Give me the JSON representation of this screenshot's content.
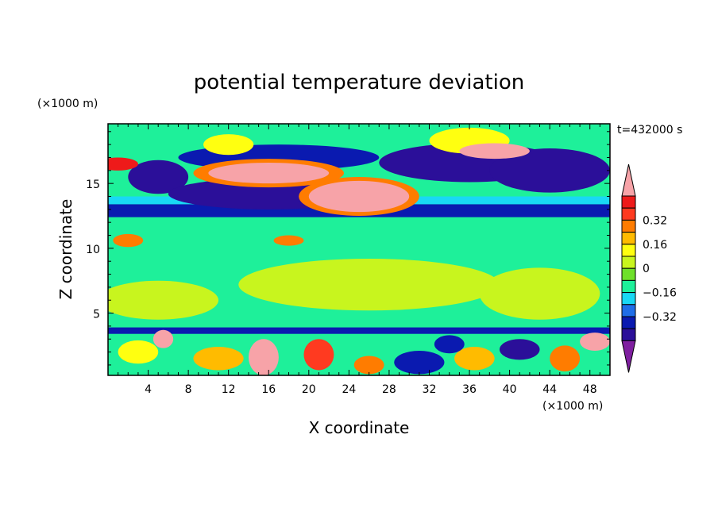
{
  "chart_data": {
    "type": "heatmap",
    "title": "potential temperature deviation",
    "xlabel": "X coordinate",
    "ylabel": "Z coordinate",
    "x_unit": "(×1000 m)",
    "y_unit": "(×1000 m)",
    "time_label": "t=432000 s",
    "xlim": [
      0,
      50
    ],
    "ylim": [
      0.2,
      19.6
    ],
    "x_ticks": [
      4,
      8,
      12,
      16,
      20,
      24,
      28,
      32,
      36,
      40,
      44,
      48
    ],
    "y_ticks": [
      5,
      10,
      15
    ],
    "colorbar": {
      "levels": [
        -0.48,
        -0.4,
        -0.32,
        -0.24,
        -0.16,
        -0.08,
        0,
        0.08,
        0.16,
        0.24,
        0.32,
        0.4,
        0.48
      ],
      "colors": [
        "#7f1fa0",
        "#2b0f99",
        "#0a1ab0",
        "#1f6ee8",
        "#19d8f4",
        "#1ef09a",
        "#6ee02a",
        "#c8f51e",
        "#ffff10",
        "#ffbb00",
        "#ff7c00",
        "#ff3a20",
        "#ee1a1a",
        "#f7a3a8"
      ],
      "labeled_levels": [
        0.32,
        0.16,
        0,
        -0.16,
        -0.32
      ],
      "tick_labels": [
        "0.32",
        "0.16",
        "0",
        "−0.16",
        "−0.32"
      ]
    },
    "features": [
      {
        "kind": "band",
        "z0": 12.4,
        "z1": 13.4,
        "value": -0.4
      },
      {
        "kind": "band",
        "z0": 13.4,
        "z1": 14.0,
        "value": -0.2
      },
      {
        "kind": "band",
        "z0": 3.4,
        "z1": 3.9,
        "value": -0.36
      },
      {
        "kind": "band",
        "z0": 3.9,
        "z1": 4.2,
        "value": -0.12
      },
      {
        "kind": "band",
        "z0": 17.8,
        "z1": 18.9,
        "value": -0.16
      },
      {
        "kind": "blob",
        "x": 5,
        "z": 15.5,
        "rx": 3,
        "rz": 1.3,
        "value": -0.44
      },
      {
        "kind": "blob",
        "x": 17,
        "z": 17.0,
        "rx": 10,
        "rz": 1.0,
        "value": -0.4
      },
      {
        "kind": "blob",
        "x": 16,
        "z": 14.2,
        "rx": 10,
        "rz": 1.2,
        "value": -0.42
      },
      {
        "kind": "blob",
        "x": 36,
        "z": 16.6,
        "rx": 9,
        "rz": 1.5,
        "value": -0.44
      },
      {
        "kind": "blob",
        "x": 44,
        "z": 16.0,
        "rx": 6,
        "rz": 1.7,
        "value": -0.44
      },
      {
        "kind": "blob",
        "x": 16,
        "z": 15.8,
        "rx": 7.5,
        "rz": 1.1,
        "value": 0.3
      },
      {
        "kind": "blob",
        "x": 16,
        "z": 15.8,
        "rx": 6,
        "rz": 0.8,
        "value": 0.52
      },
      {
        "kind": "blob",
        "x": 25,
        "z": 14.0,
        "rx": 6,
        "rz": 1.5,
        "value": 0.3
      },
      {
        "kind": "blob",
        "x": 25,
        "z": 14.0,
        "rx": 5,
        "rz": 1.2,
        "value": 0.52
      },
      {
        "kind": "blob",
        "x": 36,
        "z": 18.3,
        "rx": 4,
        "rz": 1.0,
        "value": 0.15
      },
      {
        "kind": "blob",
        "x": 38.5,
        "z": 17.5,
        "rx": 3.5,
        "rz": 0.6,
        "value": 0.5
      },
      {
        "kind": "blob",
        "x": 12,
        "z": 18.0,
        "rx": 2.5,
        "rz": 0.8,
        "value": 0.15
      },
      {
        "kind": "blob",
        "x": 1,
        "z": 16.5,
        "rx": 2,
        "rz": 0.5,
        "value": 0.4
      },
      {
        "kind": "blob",
        "x": 2,
        "z": 10.6,
        "rx": 1.5,
        "rz": 0.5,
        "value": 0.3
      },
      {
        "kind": "blob",
        "x": 18,
        "z": 10.6,
        "rx": 1.5,
        "rz": 0.4,
        "value": 0.3
      },
      {
        "kind": "blob",
        "x": 26,
        "z": 7.2,
        "rx": 13,
        "rz": 2.0,
        "value": 0.04
      },
      {
        "kind": "blob",
        "x": 5,
        "z": 6.0,
        "rx": 6,
        "rz": 1.5,
        "value": 0.04
      },
      {
        "kind": "blob",
        "x": 43,
        "z": 6.5,
        "rx": 6,
        "rz": 2.0,
        "value": 0.04
      },
      {
        "kind": "blob",
        "x": 15.5,
        "z": 1.6,
        "rx": 1.5,
        "rz": 1.4,
        "value": 0.52
      },
      {
        "kind": "blob",
        "x": 5.5,
        "z": 3.0,
        "rx": 1,
        "rz": 0.7,
        "value": 0.5
      },
      {
        "kind": "blob",
        "x": 21,
        "z": 1.8,
        "rx": 1.5,
        "rz": 1.2,
        "value": 0.32
      },
      {
        "kind": "blob",
        "x": 11,
        "z": 1.5,
        "rx": 2.5,
        "rz": 0.9,
        "value": 0.2
      },
      {
        "kind": "blob",
        "x": 31,
        "z": 1.2,
        "rx": 2.5,
        "rz": 0.9,
        "value": -0.4
      },
      {
        "kind": "blob",
        "x": 36.5,
        "z": 1.5,
        "rx": 2,
        "rz": 0.9,
        "value": 0.22
      },
      {
        "kind": "blob",
        "x": 41,
        "z": 2.2,
        "rx": 2,
        "rz": 0.8,
        "value": -0.44
      },
      {
        "kind": "blob",
        "x": 45.5,
        "z": 1.5,
        "rx": 1.5,
        "rz": 1.0,
        "value": 0.3
      },
      {
        "kind": "blob",
        "x": 48.5,
        "z": 2.8,
        "rx": 1.5,
        "rz": 0.7,
        "value": 0.52
      },
      {
        "kind": "blob",
        "x": 26,
        "z": 1.0,
        "rx": 1.5,
        "rz": 0.7,
        "value": 0.3
      },
      {
        "kind": "blob",
        "x": 3,
        "z": 2.0,
        "rx": 2,
        "rz": 0.9,
        "value": 0.14
      },
      {
        "kind": "blob",
        "x": 34,
        "z": 2.6,
        "rx": 1.5,
        "rz": 0.7,
        "value": -0.36
      }
    ]
  }
}
